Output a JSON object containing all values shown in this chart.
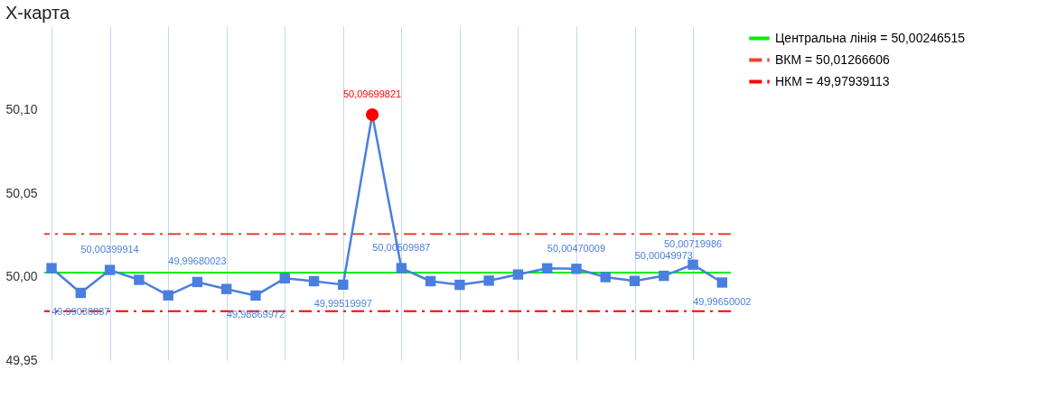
{
  "chart_data": {
    "type": "line",
    "title": "X-карта",
    "categories": [
      null,
      null,
      null,
      null,
      null,
      null,
      null,
      null,
      null,
      null,
      null,
      null,
      null,
      null,
      null,
      null,
      null,
      null,
      null,
      null,
      null,
      null,
      null,
      null
    ],
    "series": [
      {
        "color": "#4a7fe0",
        "colors": [
          "#4a7fe0",
          "#4a7fe0",
          "#4a7fe0",
          "#4a7fe0",
          "#4a7fe0",
          "#4a7fe0",
          "#4a7fe0",
          "#4a7fe0",
          "#4a7fe0",
          "#4a7fe0",
          "#4a7fe0",
          "#ff0000",
          "#4a7fe0",
          "#4a7fe0",
          "#4a7fe0",
          "#4a7fe0",
          "#4a7fe0",
          "#4a7fe0",
          "#4a7fe0",
          "#4a7fe0",
          "#4a7fe0",
          "#4a7fe0",
          "#4a7fe0",
          "#4a7fe0"
        ],
        "values": [
          50.0051,
          49.99030037,
          50.00399914,
          49.9981,
          49.9888,
          49.99680023,
          49.9926,
          49.98869972,
          49.999,
          49.9973,
          49.99519997,
          50.09699821,
          50.00509987,
          49.9973,
          49.9951,
          49.9976,
          50.0013,
          50.005,
          50.00470009,
          49.9997,
          49.9974,
          50.00049973,
          50.00719986,
          49.99650002
        ],
        "value_labels": [
          null,
          "49,99030037",
          "50,00399914",
          null,
          null,
          "49,99680023",
          null,
          "49,98869972",
          null,
          null,
          "49,99519997",
          "50,09699821",
          "50,00509987",
          null,
          null,
          null,
          null,
          null,
          "50,00470009",
          null,
          null,
          "50,00049973",
          "50,00719986",
          "49,99650002"
        ]
      }
    ],
    "ref_lines": [
      {
        "axis": "y",
        "value": 50.00246515,
        "label": "Центральна лінія = 50,00246515",
        "color": "#00ee00",
        "line_style": "solid"
      },
      {
        "axis": "y",
        "value": 50.0256,
        "label": "ВКМ = 50,01266606",
        "color": "#ea4335",
        "line_style": "dashed"
      },
      {
        "axis": "y",
        "value": 49.97939113,
        "label": "НКМ = 49,97939113",
        "color": "#ff0000",
        "line_style": "dashed"
      }
    ],
    "ylim": [
      49.95,
      50.15
    ],
    "yticks": [
      {
        "value": 49.95,
        "label": "49,95"
      },
      {
        "value": 50.0,
        "label": "50,00"
      },
      {
        "value": 50.05,
        "label": "50,05"
      },
      {
        "value": 50.1,
        "label": "50,10"
      }
    ],
    "tick_labels": "y",
    "grid": "x",
    "legend": "right",
    "marker": "square",
    "line_style": "solid"
  }
}
